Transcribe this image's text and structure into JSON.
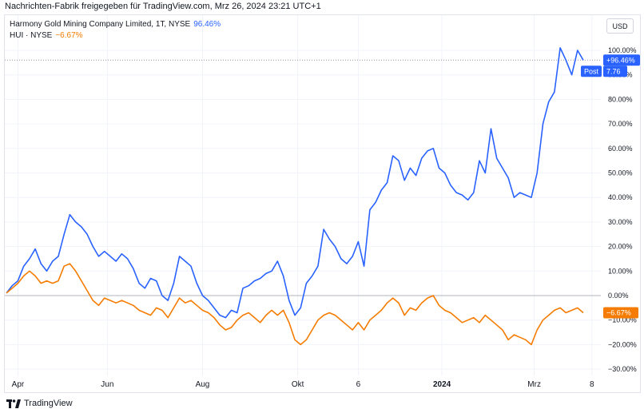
{
  "caption": "Nachrichten-Fabrik freigegeben für TradingView.com, Mrz 26, 2024 23:21 UTC+1",
  "legend": {
    "series1_name": "Harmony Gold Mining Company Limited, 1T, NYSE",
    "series1_value": "96.46%",
    "series2_name": "HUI · NYSE",
    "series2_value": "−6.67%"
  },
  "currency_label": "USD",
  "badges": {
    "blue_value": "+96.46%",
    "post_label": "Post",
    "post_value": "7.76",
    "orange_value": "−6.67%"
  },
  "footer": {
    "brand": "TradingView"
  },
  "colors": {
    "blue": "#2962ff",
    "orange": "#f57c00",
    "grid": "#f0f3fa",
    "zero": "#b2b5be"
  },
  "chart_data": {
    "type": "line",
    "y_ticks": [
      "100.00%",
      "90.00%",
      "80.00%",
      "70.00%",
      "60.00%",
      "50.00%",
      "40.00%",
      "30.00%",
      "20.00%",
      "10.00%",
      "0.00%",
      "−10.00%",
      "−20.00%",
      "−30.00%"
    ],
    "x_ticks": [
      {
        "label": "Apr",
        "t": 0.02,
        "bold": false
      },
      {
        "label": "Jun",
        "t": 0.175,
        "bold": false
      },
      {
        "label": "Aug",
        "t": 0.34,
        "bold": false
      },
      {
        "label": "Okt",
        "t": 0.505,
        "bold": false
      },
      {
        "label": "6",
        "t": 0.61,
        "bold": false
      },
      {
        "label": "2024",
        "t": 0.755,
        "bold": true
      },
      {
        "label": "Mrz",
        "t": 0.915,
        "bold": false
      },
      {
        "label": "8",
        "t": 1.015,
        "bold": false
      }
    ],
    "ylim": [
      -33,
      102
    ],
    "series": [
      {
        "name": "Harmony Gold Mining Company Limited",
        "color": "#2962ff",
        "points": [
          [
            0,
            1
          ],
          [
            0.01,
            4
          ],
          [
            0.02,
            6
          ],
          [
            0.03,
            12
          ],
          [
            0.04,
            15
          ],
          [
            0.05,
            19
          ],
          [
            0.06,
            13
          ],
          [
            0.07,
            10
          ],
          [
            0.08,
            14
          ],
          [
            0.09,
            16
          ],
          [
            0.1,
            25
          ],
          [
            0.11,
            33
          ],
          [
            0.12,
            30
          ],
          [
            0.13,
            28
          ],
          [
            0.14,
            25
          ],
          [
            0.15,
            20
          ],
          [
            0.16,
            16
          ],
          [
            0.17,
            18
          ],
          [
            0.18,
            16
          ],
          [
            0.19,
            14
          ],
          [
            0.2,
            17
          ],
          [
            0.21,
            15
          ],
          [
            0.22,
            11
          ],
          [
            0.23,
            5
          ],
          [
            0.24,
            3
          ],
          [
            0.25,
            7
          ],
          [
            0.26,
            6
          ],
          [
            0.27,
            0
          ],
          [
            0.28,
            -2
          ],
          [
            0.29,
            5
          ],
          [
            0.3,
            16
          ],
          [
            0.31,
            14
          ],
          [
            0.32,
            12
          ],
          [
            0.33,
            5
          ],
          [
            0.34,
            0
          ],
          [
            0.35,
            -2
          ],
          [
            0.36,
            -5
          ],
          [
            0.37,
            -8
          ],
          [
            0.38,
            -9
          ],
          [
            0.39,
            -6
          ],
          [
            0.4,
            -7
          ],
          [
            0.41,
            3
          ],
          [
            0.42,
            4
          ],
          [
            0.43,
            6
          ],
          [
            0.44,
            7
          ],
          [
            0.45,
            9
          ],
          [
            0.46,
            10
          ],
          [
            0.47,
            14
          ],
          [
            0.48,
            8
          ],
          [
            0.49,
            -2
          ],
          [
            0.5,
            -8
          ],
          [
            0.51,
            -5
          ],
          [
            0.52,
            5
          ],
          [
            0.53,
            8
          ],
          [
            0.54,
            12
          ],
          [
            0.55,
            27
          ],
          [
            0.56,
            23
          ],
          [
            0.57,
            20
          ],
          [
            0.58,
            15
          ],
          [
            0.59,
            13
          ],
          [
            0.6,
            16
          ],
          [
            0.61,
            22
          ],
          [
            0.62,
            12
          ],
          [
            0.63,
            35
          ],
          [
            0.64,
            38
          ],
          [
            0.65,
            43
          ],
          [
            0.66,
            46
          ],
          [
            0.67,
            57
          ],
          [
            0.68,
            55
          ],
          [
            0.69,
            47
          ],
          [
            0.7,
            52
          ],
          [
            0.71,
            49
          ],
          [
            0.72,
            56
          ],
          [
            0.73,
            59
          ],
          [
            0.74,
            60
          ],
          [
            0.75,
            52
          ],
          [
            0.76,
            50
          ],
          [
            0.77,
            45
          ],
          [
            0.78,
            42
          ],
          [
            0.79,
            41
          ],
          [
            0.8,
            39
          ],
          [
            0.81,
            42
          ],
          [
            0.82,
            55
          ],
          [
            0.83,
            50
          ],
          [
            0.84,
            68
          ],
          [
            0.85,
            56
          ],
          [
            0.86,
            52
          ],
          [
            0.87,
            48
          ],
          [
            0.88,
            40
          ],
          [
            0.89,
            42
          ],
          [
            0.9,
            41
          ],
          [
            0.91,
            40
          ],
          [
            0.92,
            50
          ],
          [
            0.93,
            70
          ],
          [
            0.94,
            79
          ],
          [
            0.95,
            83
          ],
          [
            0.96,
            101
          ],
          [
            0.97,
            96
          ],
          [
            0.98,
            90
          ],
          [
            0.99,
            100
          ],
          [
            1.0,
            96
          ]
        ]
      },
      {
        "name": "HUI",
        "color": "#f57c00",
        "points": [
          [
            0,
            1
          ],
          [
            0.01,
            3
          ],
          [
            0.02,
            5
          ],
          [
            0.03,
            8
          ],
          [
            0.04,
            10
          ],
          [
            0.05,
            8
          ],
          [
            0.06,
            5
          ],
          [
            0.07,
            6
          ],
          [
            0.08,
            5
          ],
          [
            0.09,
            6
          ],
          [
            0.1,
            12
          ],
          [
            0.11,
            13
          ],
          [
            0.12,
            10
          ],
          [
            0.13,
            6
          ],
          [
            0.14,
            2
          ],
          [
            0.15,
            -2
          ],
          [
            0.16,
            -4
          ],
          [
            0.17,
            -1
          ],
          [
            0.18,
            -2
          ],
          [
            0.19,
            -3
          ],
          [
            0.2,
            -2
          ],
          [
            0.21,
            -3
          ],
          [
            0.22,
            -4
          ],
          [
            0.23,
            -6
          ],
          [
            0.24,
            -7
          ],
          [
            0.25,
            -8
          ],
          [
            0.26,
            -5
          ],
          [
            0.27,
            -6
          ],
          [
            0.28,
            -9
          ],
          [
            0.29,
            -5
          ],
          [
            0.3,
            -1
          ],
          [
            0.31,
            -3
          ],
          [
            0.32,
            -2
          ],
          [
            0.33,
            -4
          ],
          [
            0.34,
            -6
          ],
          [
            0.35,
            -7
          ],
          [
            0.36,
            -9
          ],
          [
            0.37,
            -12
          ],
          [
            0.38,
            -14
          ],
          [
            0.39,
            -13
          ],
          [
            0.4,
            -10
          ],
          [
            0.41,
            -8
          ],
          [
            0.42,
            -7
          ],
          [
            0.43,
            -9
          ],
          [
            0.44,
            -11
          ],
          [
            0.45,
            -8
          ],
          [
            0.46,
            -6
          ],
          [
            0.47,
            -8
          ],
          [
            0.48,
            -6
          ],
          [
            0.49,
            -11
          ],
          [
            0.5,
            -18
          ],
          [
            0.51,
            -20
          ],
          [
            0.52,
            -18
          ],
          [
            0.53,
            -14
          ],
          [
            0.54,
            -10
          ],
          [
            0.55,
            -8
          ],
          [
            0.56,
            -7
          ],
          [
            0.57,
            -8
          ],
          [
            0.58,
            -10
          ],
          [
            0.59,
            -12
          ],
          [
            0.6,
            -14
          ],
          [
            0.61,
            -11
          ],
          [
            0.62,
            -14
          ],
          [
            0.63,
            -10
          ],
          [
            0.64,
            -8
          ],
          [
            0.65,
            -6
          ],
          [
            0.66,
            -3
          ],
          [
            0.67,
            -1
          ],
          [
            0.68,
            -3
          ],
          [
            0.69,
            -8
          ],
          [
            0.7,
            -5
          ],
          [
            0.71,
            -6
          ],
          [
            0.72,
            -3
          ],
          [
            0.73,
            -1
          ],
          [
            0.74,
            0
          ],
          [
            0.75,
            -4
          ],
          [
            0.76,
            -6
          ],
          [
            0.77,
            -7
          ],
          [
            0.78,
            -9
          ],
          [
            0.79,
            -11
          ],
          [
            0.8,
            -10
          ],
          [
            0.81,
            -9
          ],
          [
            0.82,
            -11
          ],
          [
            0.83,
            -8
          ],
          [
            0.84,
            -10
          ],
          [
            0.85,
            -12
          ],
          [
            0.86,
            -14
          ],
          [
            0.87,
            -18
          ],
          [
            0.88,
            -16
          ],
          [
            0.89,
            -17
          ],
          [
            0.9,
            -18
          ],
          [
            0.91,
            -20
          ],
          [
            0.92,
            -14
          ],
          [
            0.93,
            -10
          ],
          [
            0.94,
            -8
          ],
          [
            0.95,
            -6
          ],
          [
            0.96,
            -5
          ],
          [
            0.97,
            -7
          ],
          [
            0.98,
            -6
          ],
          [
            0.99,
            -5
          ],
          [
            1.0,
            -7
          ]
        ]
      }
    ]
  }
}
